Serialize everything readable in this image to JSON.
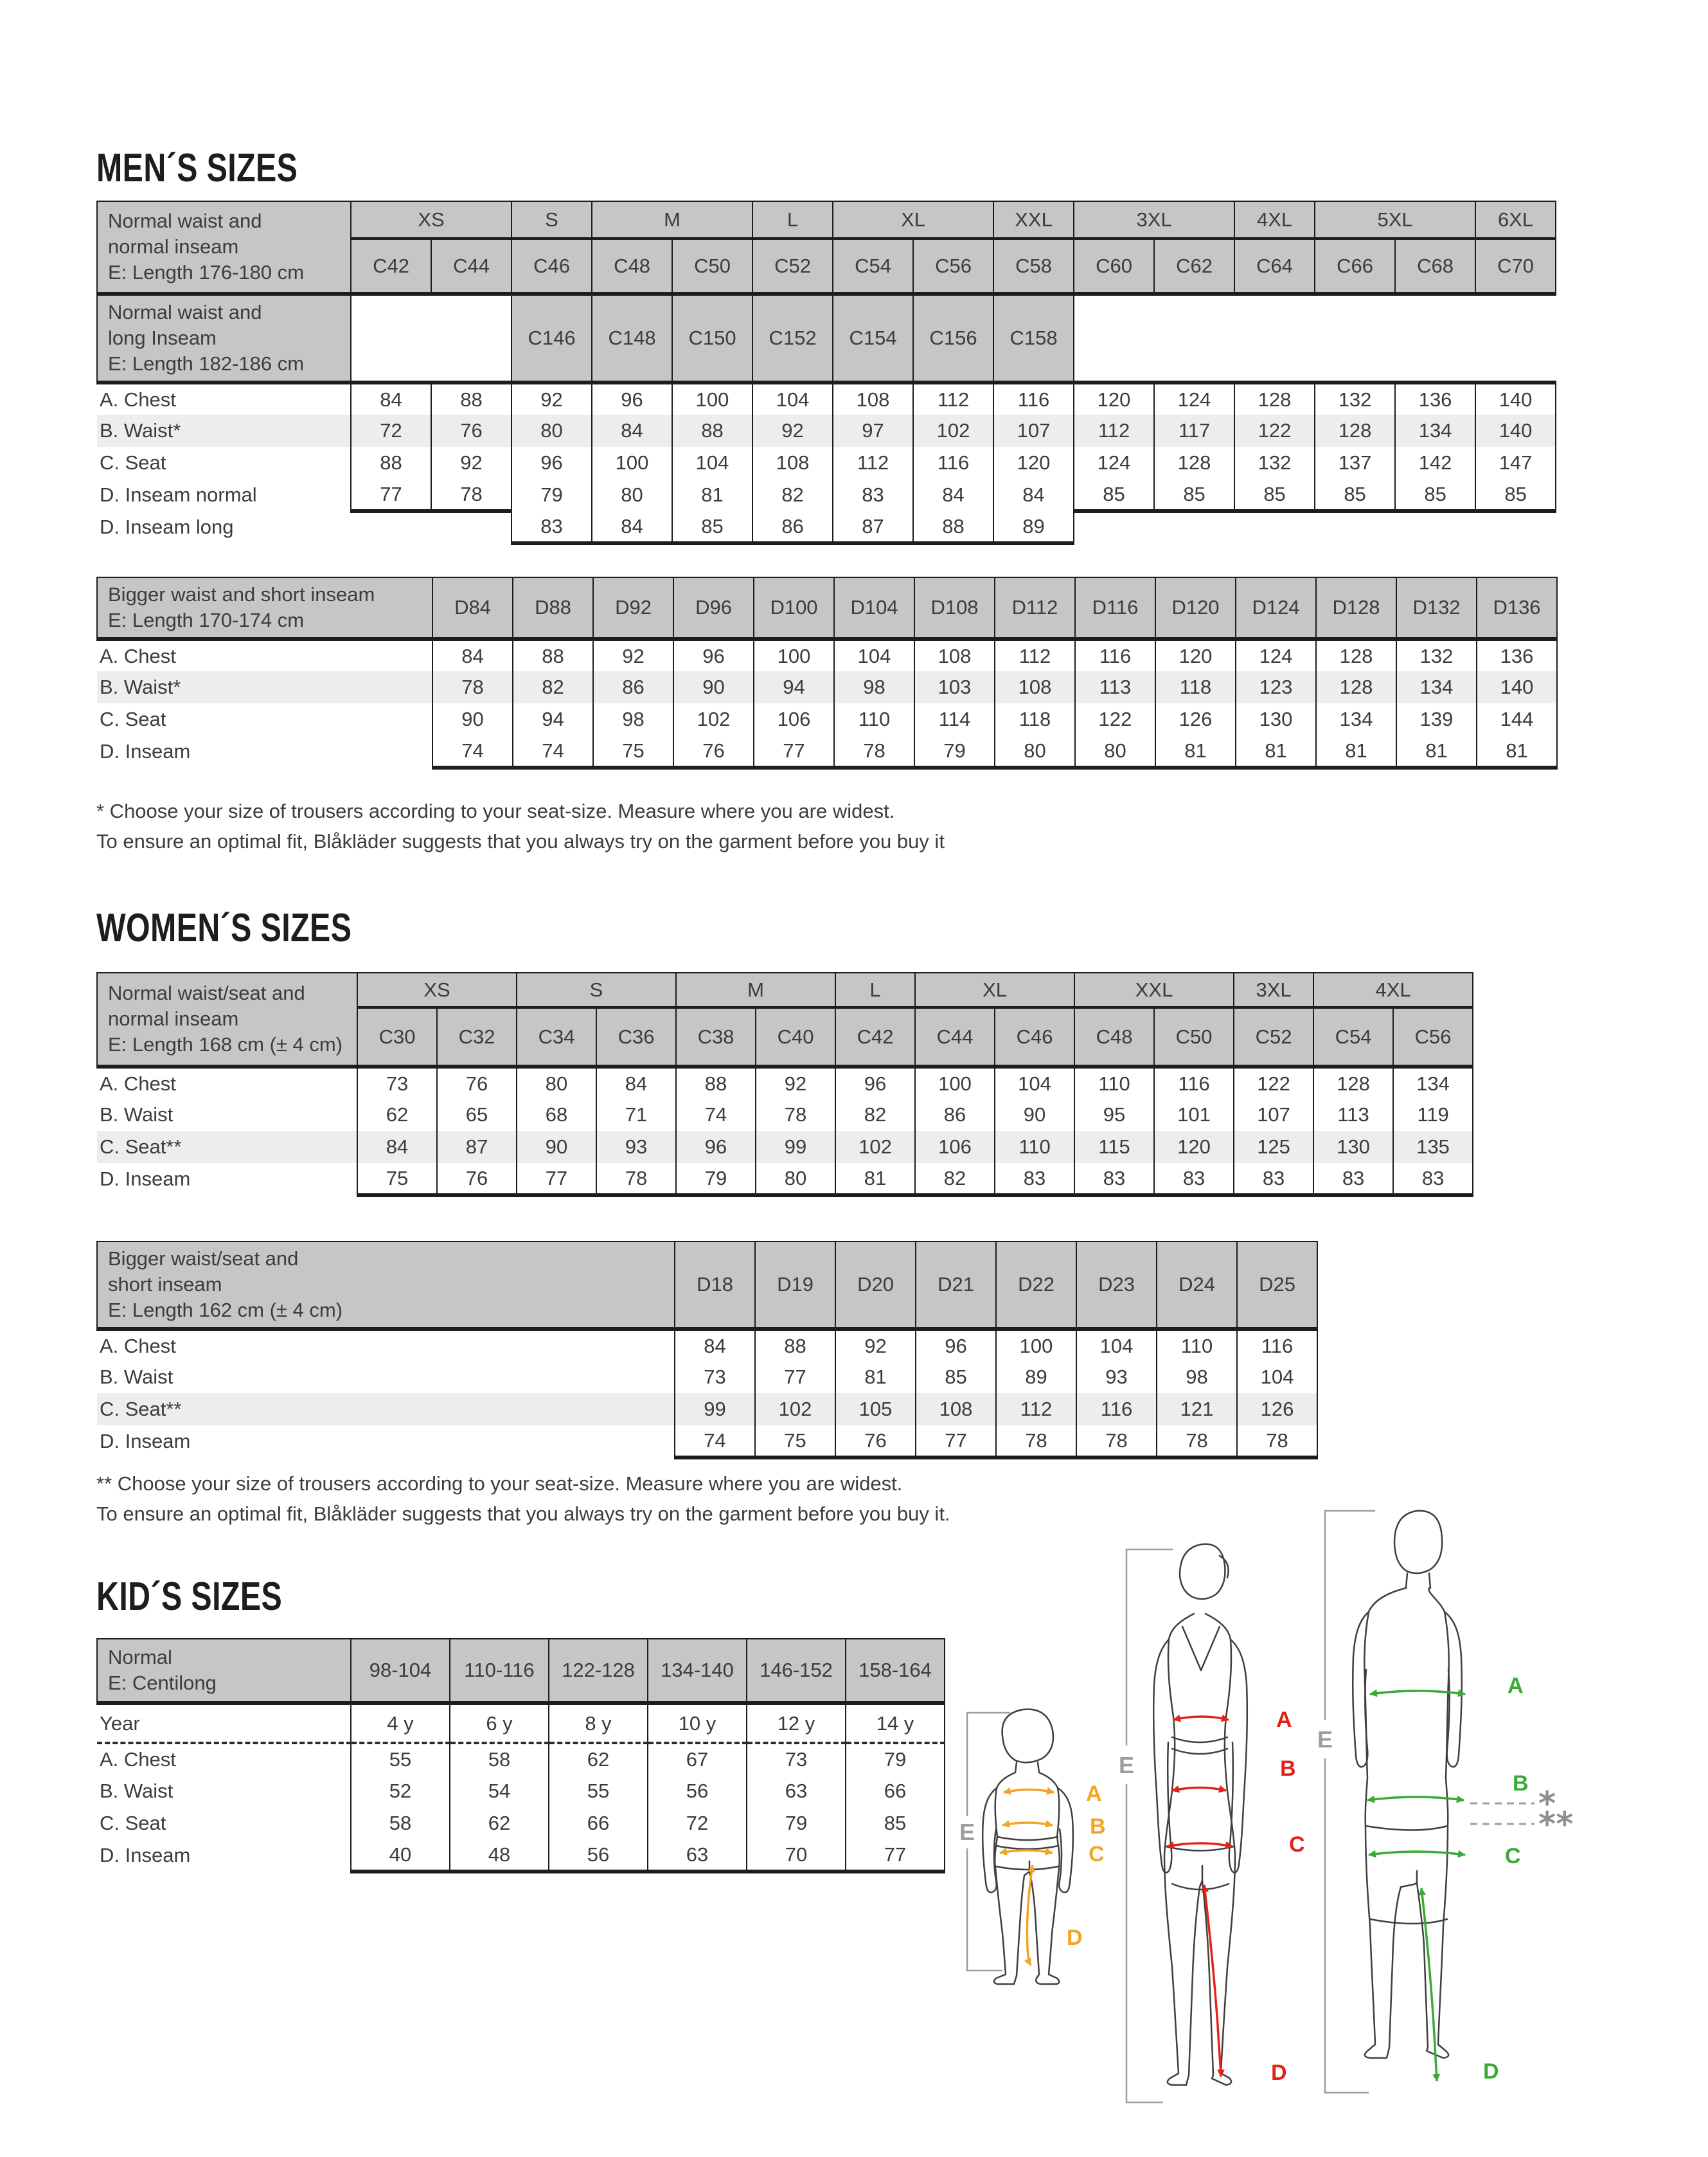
{
  "figures": {
    "letters": {
      "a": "A",
      "b": "B",
      "c": "C",
      "d": "D",
      "e": "E"
    },
    "star": "*",
    "double_star": "**",
    "colors": {
      "kid": "#f4a427",
      "woman": "#e2231a",
      "man": "#3aaa35",
      "gray": "#9d9d9c"
    }
  },
  "mens": {
    "title": "MEN´S SIZES",
    "footnote1": "* Choose your size of trousers according to your seat-size. Measure where you are widest.",
    "footnote2": "To ensure an optimal fit, Blåkläder suggests that you always try on the garment before you buy it",
    "table1": {
      "label": "Normal waist and\nnormal inseam\nE: Length 176-180 cm",
      "label2": "Normal waist and\nlong Inseam\nE: Length 182-186 cm",
      "groups": [
        "XS",
        "S",
        "M",
        "L",
        "XL",
        "XXL",
        "3XL",
        "4XL",
        "5XL",
        "6XL"
      ],
      "codes": [
        "C42",
        "C44",
        "C46",
        "C48",
        "C50",
        "C52",
        "C54",
        "C56",
        "C58",
        "C60",
        "C62",
        "C64",
        "C66",
        "C68",
        "C70"
      ],
      "long_codes": [
        "C146",
        "C148",
        "C150",
        "C152",
        "C154",
        "C156",
        "C158"
      ],
      "rows": [
        {
          "label": "A. Chest",
          "values": [
            "84",
            "88",
            "92",
            "96",
            "100",
            "104",
            "108",
            "112",
            "116",
            "120",
            "124",
            "128",
            "132",
            "136",
            "140"
          ]
        },
        {
          "label": "B. Waist*",
          "shaded": true,
          "values": [
            "72",
            "76",
            "80",
            "84",
            "88",
            "92",
            "97",
            "102",
            "107",
            "112",
            "117",
            "122",
            "128",
            "134",
            "140"
          ]
        },
        {
          "label": "C. Seat",
          "values": [
            "88",
            "92",
            "96",
            "100",
            "104",
            "108",
            "112",
            "116",
            "120",
            "124",
            "128",
            "132",
            "137",
            "142",
            "147"
          ]
        },
        {
          "label": "D. Inseam normal",
          "bottom_cols": [
            0,
            1,
            9,
            10,
            11,
            12,
            13,
            14
          ],
          "values": [
            "77",
            "78",
            "79",
            "80",
            "81",
            "82",
            "83",
            "84",
            "84",
            "85",
            "85",
            "85",
            "85",
            "85",
            "85"
          ]
        },
        {
          "label": "D. Inseam long",
          "values": [
            null,
            null,
            "83",
            "84",
            "85",
            "86",
            "87",
            "88",
            "89",
            null,
            null,
            null,
            null,
            null,
            null
          ]
        }
      ]
    },
    "table2": {
      "label": "Bigger waist and short inseam\nE: Length 170-174 cm",
      "codes": [
        "D84",
        "D88",
        "D92",
        "D96",
        "D100",
        "D104",
        "D108",
        "D112",
        "D116",
        "D120",
        "D124",
        "D128",
        "D132",
        "D136"
      ],
      "rows": [
        {
          "label": "A. Chest",
          "values": [
            "84",
            "88",
            "92",
            "96",
            "100",
            "104",
            "108",
            "112",
            "116",
            "120",
            "124",
            "128",
            "132",
            "136"
          ]
        },
        {
          "label": "B. Waist*",
          "shaded": true,
          "values": [
            "78",
            "82",
            "86",
            "90",
            "94",
            "98",
            "103",
            "108",
            "113",
            "118",
            "123",
            "128",
            "134",
            "140"
          ]
        },
        {
          "label": "C. Seat",
          "values": [
            "90",
            "94",
            "98",
            "102",
            "106",
            "110",
            "114",
            "118",
            "122",
            "126",
            "130",
            "134",
            "139",
            "144"
          ]
        },
        {
          "label": "D. Inseam",
          "values": [
            "74",
            "74",
            "75",
            "76",
            "77",
            "78",
            "79",
            "80",
            "80",
            "81",
            "81",
            "81",
            "81",
            "81"
          ]
        }
      ]
    }
  },
  "womens": {
    "title": "WOMEN´S SIZES",
    "footnote1": "** Choose your size of trousers according to your seat-size. Measure where you are widest.",
    "footnote2": "To ensure an optimal fit, Blåkläder suggests that you always try on the garment before you buy it.",
    "table1": {
      "label": "Normal waist/seat and\nnormal inseam\nE: Length 168 cm (± 4 cm)",
      "groups": [
        "XS",
        "S",
        "M",
        "L",
        "XL",
        "XXL",
        "3XL",
        "4XL"
      ],
      "codes": [
        "C30",
        "C32",
        "C34",
        "C36",
        "C38",
        "C40",
        "C42",
        "C44",
        "C46",
        "C48",
        "C50",
        "C52",
        "C54",
        "C56"
      ],
      "rows": [
        {
          "label": "A. Chest",
          "values": [
            "73",
            "76",
            "80",
            "84",
            "88",
            "92",
            "96",
            "100",
            "104",
            "110",
            "116",
            "122",
            "128",
            "134"
          ]
        },
        {
          "label": "B. Waist",
          "values": [
            "62",
            "65",
            "68",
            "71",
            "74",
            "78",
            "82",
            "86",
            "90",
            "95",
            "101",
            "107",
            "113",
            "119"
          ]
        },
        {
          "label": "C. Seat**",
          "shaded": true,
          "values": [
            "84",
            "87",
            "90",
            "93",
            "96",
            "99",
            "102",
            "106",
            "110",
            "115",
            "120",
            "125",
            "130",
            "135"
          ]
        },
        {
          "label": "D. Inseam",
          "values": [
            "75",
            "76",
            "77",
            "78",
            "79",
            "80",
            "81",
            "82",
            "83",
            "83",
            "83",
            "83",
            "83",
            "83"
          ]
        }
      ]
    },
    "table2": {
      "label": "Bigger waist/seat and\nshort inseam\nE: Length 162 cm (± 4 cm)",
      "codes": [
        "D18",
        "D19",
        "D20",
        "D21",
        "D22",
        "D23",
        "D24",
        "D25"
      ],
      "rows": [
        {
          "label": "A. Chest",
          "values": [
            "84",
            "88",
            "92",
            "96",
            "100",
            "104",
            "110",
            "116"
          ]
        },
        {
          "label": "B. Waist",
          "values": [
            "73",
            "77",
            "81",
            "85",
            "89",
            "93",
            "98",
            "104"
          ]
        },
        {
          "label": "C. Seat**",
          "shaded": true,
          "values": [
            "99",
            "102",
            "105",
            "108",
            "112",
            "116",
            "121",
            "126"
          ]
        },
        {
          "label": "D. Inseam",
          "values": [
            "74",
            "75",
            "76",
            "77",
            "78",
            "78",
            "78",
            "78"
          ]
        }
      ]
    }
  },
  "kids": {
    "title": "KID´S SIZES",
    "table": {
      "label": "Normal\nE: Centilong",
      "codes": [
        "98-104",
        "110-116",
        "122-128",
        "134-140",
        "146-152",
        "158-164"
      ],
      "rows": [
        {
          "label": "Year",
          "dotted": true,
          "tall": true,
          "values": [
            "4 y",
            "6 y",
            "8 y",
            "10 y",
            "12 y",
            "14 y"
          ]
        },
        {
          "label": "A. Chest",
          "values": [
            "55",
            "58",
            "62",
            "67",
            "73",
            "79"
          ]
        },
        {
          "label": "B. Waist",
          "values": [
            "52",
            "54",
            "55",
            "56",
            "63",
            "66"
          ]
        },
        {
          "label": "C. Seat",
          "values": [
            "58",
            "62",
            "66",
            "72",
            "79",
            "85"
          ]
        },
        {
          "label": "D. Inseam",
          "values": [
            "40",
            "48",
            "56",
            "63",
            "70",
            "77"
          ]
        }
      ]
    }
  }
}
